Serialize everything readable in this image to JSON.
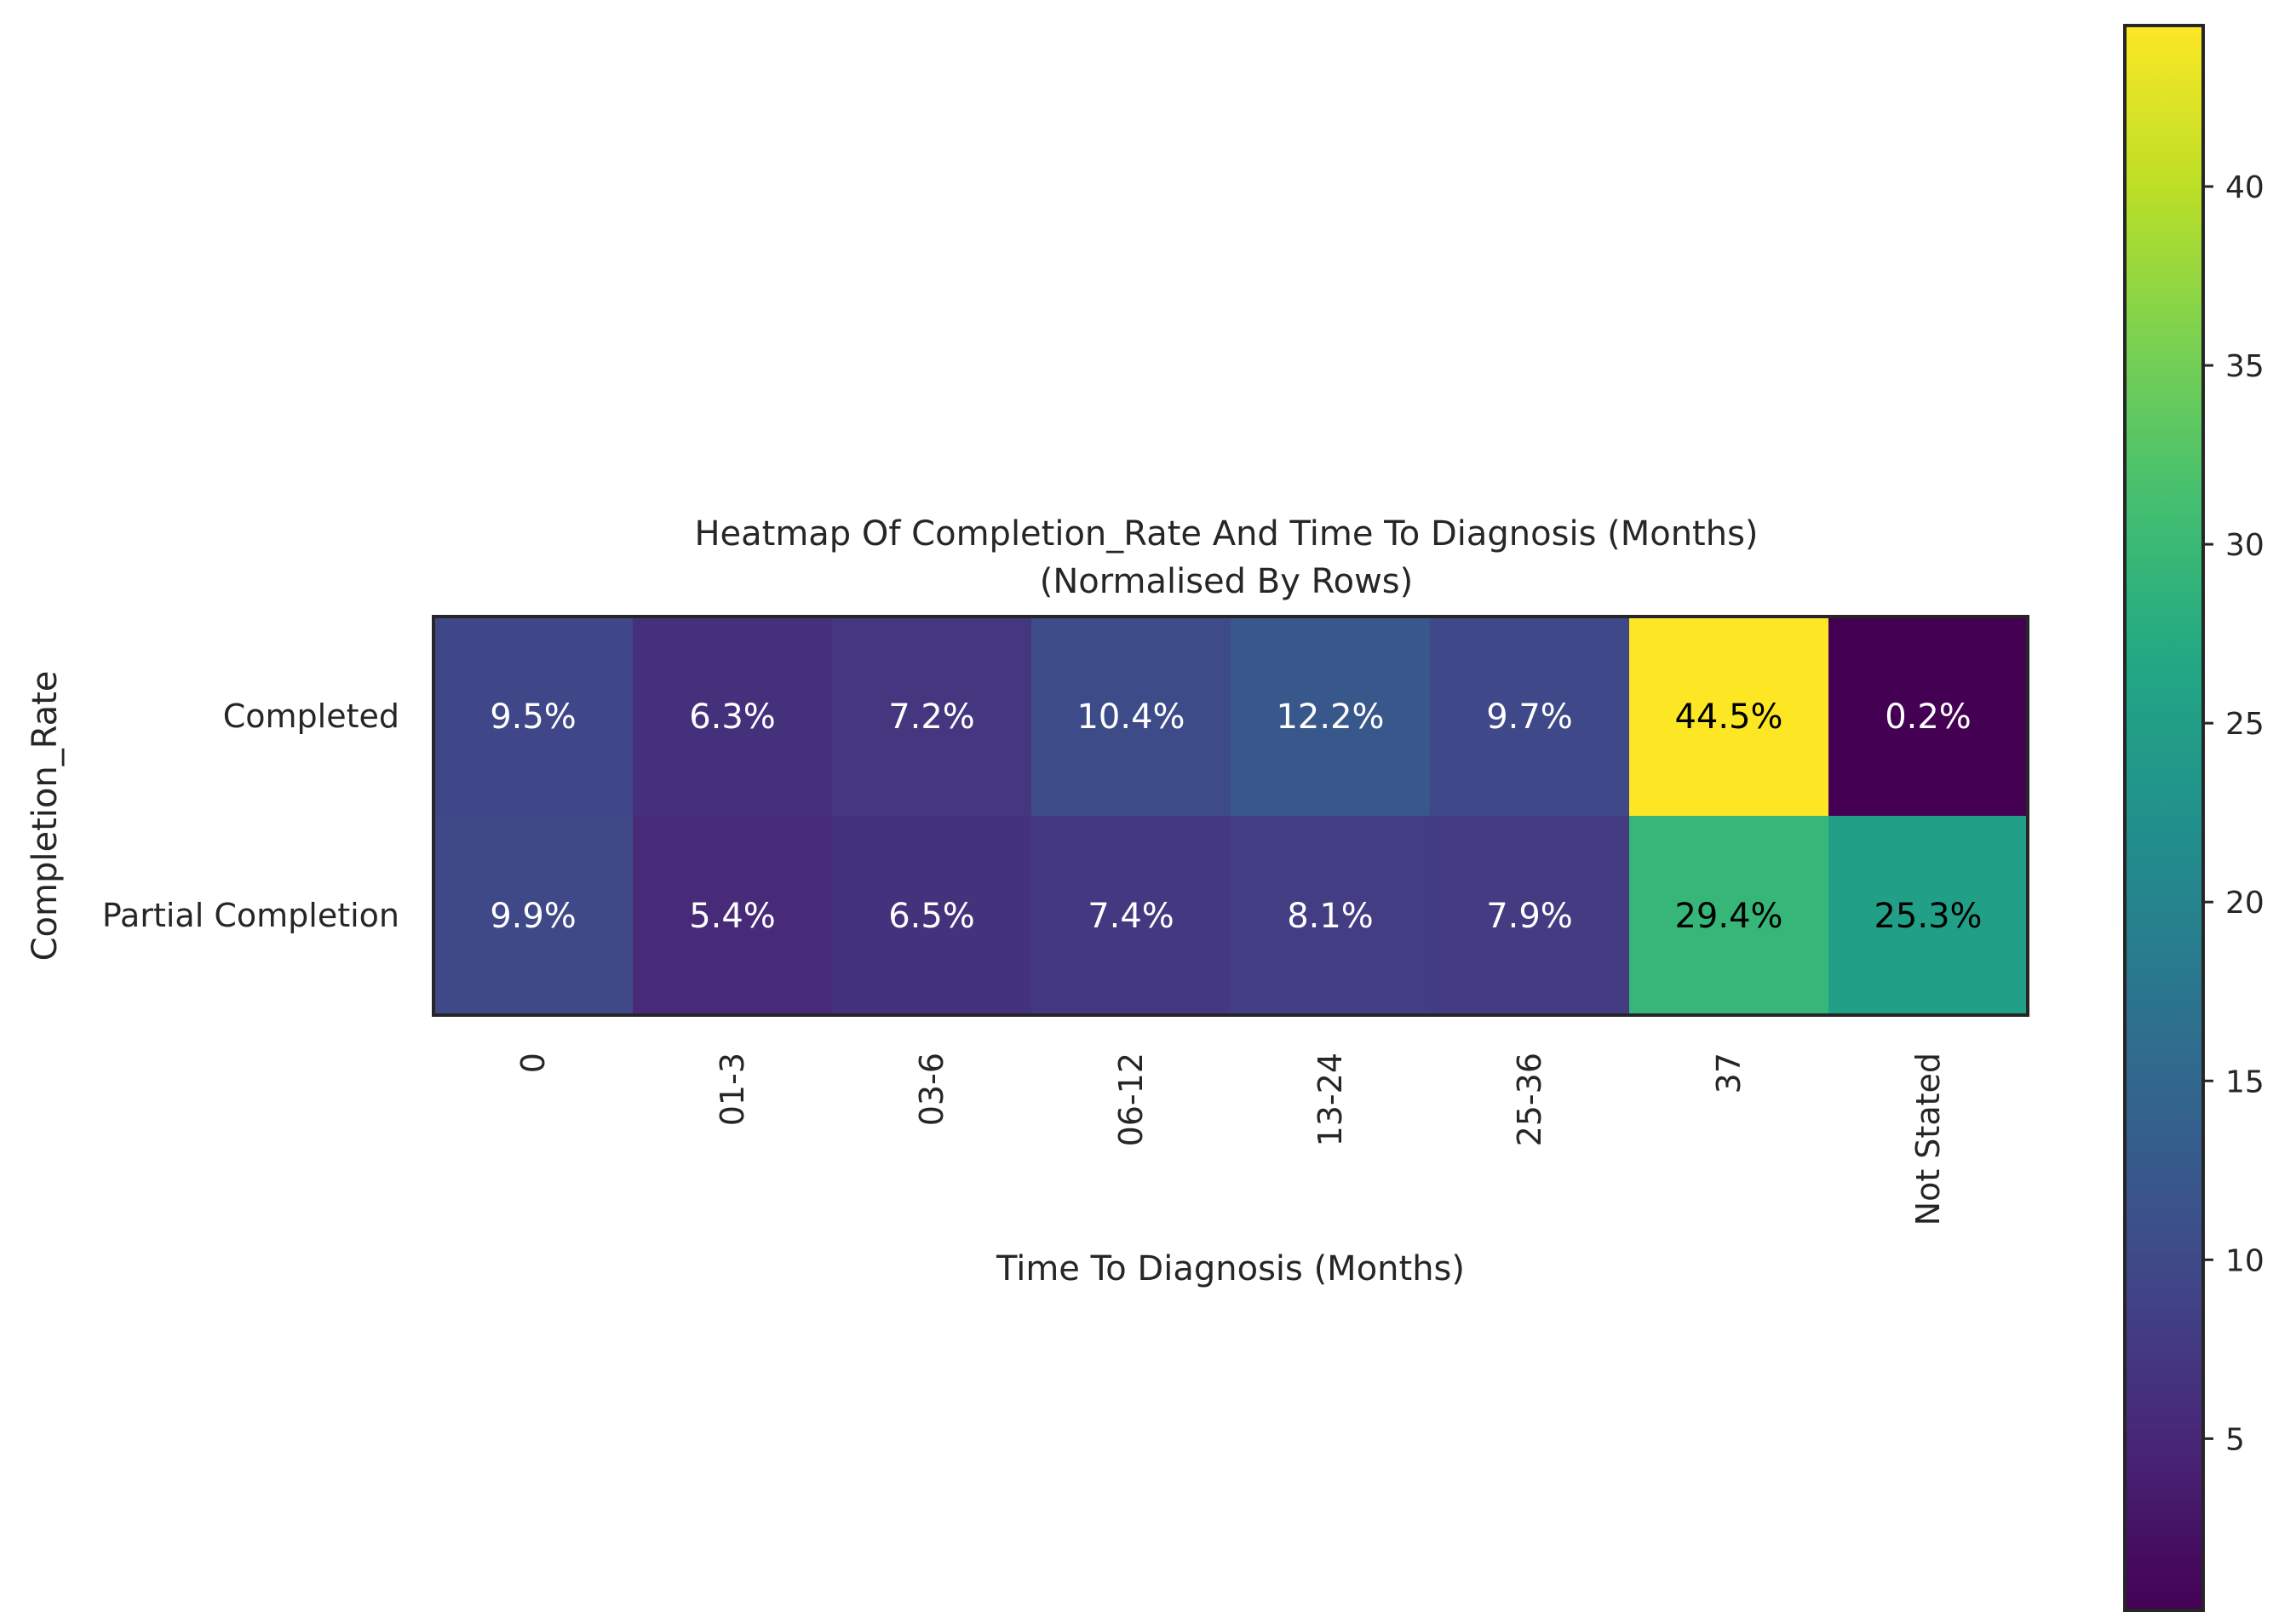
{
  "chart_data": {
    "type": "heatmap",
    "title": "Heatmap Of Completion_Rate And Time To Diagnosis (Months)",
    "subtitle": "(Normalised By Rows)",
    "xlabel": "Time To Diagnosis (Months)",
    "ylabel": "Completion_Rate",
    "x_categories": [
      "0",
      "01-3",
      "03-6",
      "06-12",
      "13-24",
      "25-36",
      "37",
      "Not Stated"
    ],
    "y_categories": [
      "Completed",
      "Partial Completion"
    ],
    "values": [
      [
        9.5,
        6.3,
        7.2,
        10.4,
        12.2,
        9.7,
        44.5,
        0.2
      ],
      [
        9.9,
        5.4,
        6.5,
        7.4,
        8.1,
        7.9,
        29.4,
        25.3
      ]
    ],
    "cell_labels": [
      [
        "9.5%",
        "6.3%",
        "7.2%",
        "10.4%",
        "12.2%",
        "9.7%",
        "44.5%",
        "0.2%"
      ],
      [
        "9.9%",
        "5.4%",
        "6.5%",
        "7.4%",
        "8.1%",
        "7.9%",
        "29.4%",
        "25.3%"
      ]
    ],
    "colormap": "viridis",
    "colorbar": {
      "range": [
        0.2,
        44.5
      ],
      "ticks": [
        5,
        10,
        15,
        20,
        25,
        30,
        35,
        40
      ]
    },
    "grid": false,
    "legend": "colorbar-right"
  }
}
